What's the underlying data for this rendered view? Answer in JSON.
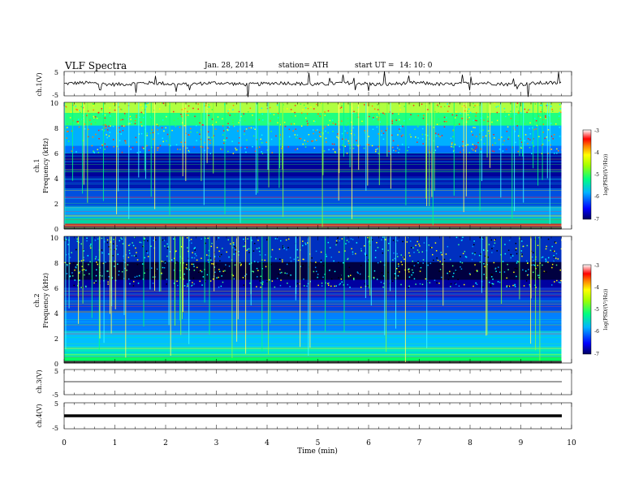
{
  "header": {
    "title": "VLF  Spectra",
    "date": "Jan.  28,  2014",
    "station": "station= ATH",
    "start_label": "start  UT  =",
    "start_time": "14: 10: 0"
  },
  "chart_data": [
    {
      "type": "line",
      "panel": "ch1-waveform",
      "ylabel": "ch.1(V)",
      "ylim": [
        -5,
        5
      ],
      "yticks": [
        "5",
        "-5"
      ],
      "x": [
        0,
        0.5,
        1,
        1.5,
        2,
        2.5,
        3,
        3.5,
        4,
        4.5,
        5,
        5.5,
        6,
        6.5,
        7,
        7.5,
        8,
        8.5,
        9,
        9.5,
        9.8
      ],
      "values": [
        0.1,
        0.0,
        -0.1,
        0.0,
        0.1,
        0.0,
        -0.1,
        0.1,
        0.0,
        0.1,
        0.0,
        -0.1,
        0.0,
        0.1,
        0.0,
        -0.1,
        0.0,
        0.1,
        0.0,
        -0.1,
        0.0
      ],
      "xlim": [
        0,
        10
      ]
    },
    {
      "type": "heatmap",
      "panel": "ch1-spectrogram",
      "ylabel_top": "ch.1",
      "ylabel": "Frequency  (kHz)",
      "yticks": [
        "0",
        "2",
        "4",
        "6",
        "8",
        "10"
      ],
      "ylim": [
        0,
        10
      ],
      "xlim": [
        0,
        10
      ],
      "colorbar": {
        "label": "log(PSD/(V²/Hz))",
        "ticks": [
          "-3",
          "-4",
          "-5",
          "-6",
          "-7"
        ],
        "range": [
          -7,
          -3
        ]
      },
      "colors": [
        "#00008b",
        "#0000ff",
        "#00c8ff",
        "#00ff00",
        "#ffff00",
        "#ff8000",
        "#ff0000",
        "#ffffff"
      ]
    },
    {
      "type": "heatmap",
      "panel": "ch2-spectrogram",
      "ylabel_top": "ch.2",
      "ylabel": "Frequency  (kHz)",
      "yticks": [
        "0",
        "2",
        "4",
        "6",
        "8",
        "10"
      ],
      "ylim": [
        0,
        10
      ],
      "xlim": [
        0,
        10
      ],
      "colorbar": {
        "label": "log(PSD/(V²/Hz))",
        "ticks": [
          "-3",
          "-4",
          "-5",
          "-6",
          "-7"
        ],
        "range": [
          -7,
          -3
        ]
      }
    },
    {
      "type": "line",
      "panel": "ch3-waveform",
      "ylabel": "ch.3(V)",
      "ylim": [
        -5,
        5
      ],
      "yticks": [
        "5",
        "-5"
      ],
      "x": [
        0,
        9.8
      ],
      "values": [
        0,
        0
      ],
      "xlim": [
        0,
        10
      ]
    },
    {
      "type": "line",
      "panel": "ch4-waveform",
      "ylabel": "ch.4(V)",
      "ylim": [
        -5,
        5
      ],
      "yticks": [
        "5",
        "-5"
      ],
      "x": [
        0,
        9.8
      ],
      "values": [
        0,
        0
      ],
      "xlim": [
        0,
        10
      ]
    }
  ],
  "x_axis": {
    "label": "Time  (min)",
    "ticks": [
      "0",
      "1",
      "2",
      "3",
      "4",
      "5",
      "6",
      "7",
      "8",
      "9",
      "10"
    ]
  }
}
